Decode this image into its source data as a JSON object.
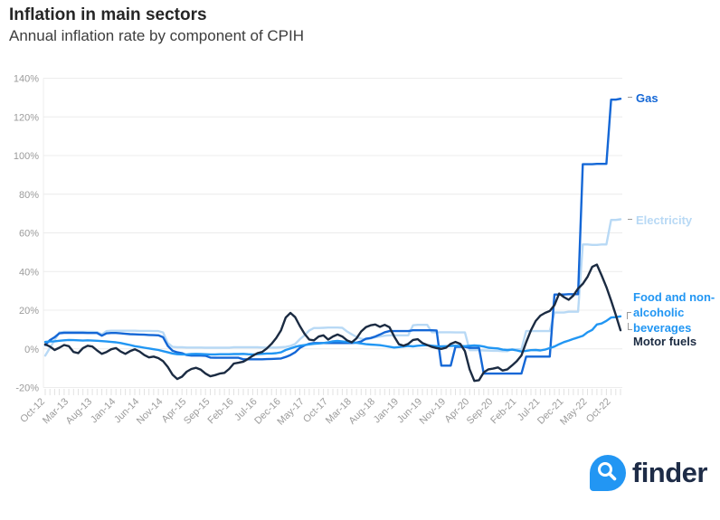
{
  "header": {
    "title": "Inflation in main sectors",
    "subtitle": "Annual inflation rate by component of CPIH"
  },
  "footer": {
    "brand": "finder",
    "logo_icon": "magnifier-drop-icon"
  },
  "chart_data": {
    "type": "line",
    "title": "Inflation in main sectors",
    "subtitle": "Annual inflation rate by component of CPIH",
    "x_start": "Oct-12",
    "x_end": "Dec-22",
    "x_interval_months": 1,
    "x_tick_every": 5,
    "x_tick_labels": [
      "Oct-12",
      "Mar-13",
      "Aug-13",
      "Jan-14",
      "Jun-14",
      "Nov-14",
      "Apr-15",
      "Sep-15",
      "Feb-16",
      "Jul-16",
      "Dec-16",
      "May-17",
      "Oct-17",
      "Mar-18",
      "Aug-18",
      "Jan-19",
      "Jun-19",
      "Nov-19",
      "Apr-20",
      "Sep-20",
      "Feb-21",
      "Jul-21",
      "Dec-21",
      "May-22",
      "Oct-22"
    ],
    "ylim": [
      -20,
      140
    ],
    "y_axis": {
      "ticks": [
        140,
        120,
        100,
        80,
        60,
        40,
        20,
        0,
        -20
      ],
      "unit": "%"
    },
    "grid": "horizontal",
    "legend_position": "right-of-line-end",
    "colors": {
      "grid": "#ececec",
      "axis_text": "#9b9b9b",
      "minor_tick": "#e2e2e2"
    },
    "draw_order": [
      1,
      0,
      2,
      3
    ],
    "series": [
      {
        "name": "Gas",
        "color": "#1467d6",
        "label_color": "#1467d6",
        "data_name": "gas-line",
        "values": [
          2.0,
          4.5,
          6.0,
          8.0,
          8.3,
          8.3,
          8.3,
          8.3,
          8.3,
          8.2,
          8.2,
          8.2,
          6.8,
          8.0,
          8.2,
          8.2,
          8.0,
          7.8,
          7.6,
          7.5,
          7.4,
          7.3,
          7.2,
          7.1,
          7.0,
          6.0,
          1.5,
          -1.0,
          -1.8,
          -2.2,
          -3.2,
          -3.5,
          -3.5,
          -3.5,
          -3.6,
          -4.5,
          -4.6,
          -4.6,
          -4.6,
          -4.6,
          -4.6,
          -4.6,
          -5.4,
          -5.4,
          -5.4,
          -5.4,
          -5.4,
          -5.3,
          -5.2,
          -5.1,
          -5.0,
          -4.2,
          -3.2,
          -1.8,
          0.5,
          1.8,
          2.6,
          3.0,
          3.0,
          3.0,
          3.0,
          3.0,
          3.0,
          3.0,
          3.0,
          3.0,
          3.2,
          3.8,
          5.2,
          5.6,
          6.4,
          7.4,
          8.6,
          9.2,
          9.2,
          9.2,
          9.2,
          9.2,
          9.6,
          9.6,
          9.6,
          9.6,
          9.6,
          9.5,
          -8.7,
          -8.7,
          -8.7,
          1.0,
          1.0,
          1.0,
          0.5,
          0.5,
          0.5,
          -12.8,
          -12.8,
          -12.8,
          -12.8,
          -12.8,
          -12.8,
          -12.8,
          -12.8,
          -12.8,
          -4.0,
          -4.0,
          -4.0,
          -4.0,
          -4.0,
          -4.0,
          28.1,
          28.1,
          28.1,
          28.3,
          28.3,
          28.3,
          95.5,
          95.5,
          95.5,
          95.7,
          95.7,
          95.7,
          128.9,
          128.9,
          129.4
        ]
      },
      {
        "name": "Electricity",
        "color": "#b8d9f5",
        "label_color": "#b8d9f5",
        "data_name": "electricity-line",
        "values": [
          -3.5,
          0.5,
          4.5,
          8.5,
          8.8,
          8.8,
          8.8,
          8.8,
          8.8,
          8.8,
          8.8,
          8.7,
          7.5,
          9.2,
          9.4,
          9.4,
          9.4,
          9.4,
          9.4,
          9.4,
          9.3,
          9.3,
          9.3,
          9.2,
          9.2,
          8.5,
          3.0,
          1.0,
          0.8,
          0.8,
          0.7,
          0.7,
          0.7,
          0.7,
          0.6,
          0.6,
          0.6,
          0.6,
          0.6,
          0.6,
          0.8,
          0.8,
          0.8,
          0.8,
          0.8,
          0.8,
          0.7,
          0.7,
          0.7,
          0.7,
          0.8,
          1.0,
          1.5,
          2.5,
          5.0,
          7.0,
          9.5,
          10.8,
          10.8,
          10.9,
          11.0,
          11.0,
          11.0,
          10.9,
          9.0,
          7.5,
          6.2,
          5.2,
          4.8,
          5.4,
          6.0,
          6.4,
          6.8,
          7.0,
          7.0,
          7.0,
          7.0,
          7.0,
          12.2,
          12.4,
          12.4,
          12.4,
          8.6,
          8.6,
          8.6,
          8.6,
          8.6,
          8.5,
          8.5,
          8.5,
          -0.7,
          -0.7,
          -0.7,
          -0.8,
          -0.9,
          -1.0,
          -1.0,
          -1.2,
          -1.2,
          -0.2,
          -0.2,
          -0.2,
          9.2,
          9.2,
          9.2,
          9.2,
          9.2,
          9.2,
          18.8,
          18.8,
          18.8,
          19.2,
          19.2,
          19.2,
          54.0,
          54.0,
          53.8,
          53.8,
          54.0,
          54.0,
          66.7,
          66.7,
          67.0
        ]
      },
      {
        "name": "Food and non-alcoholic beverages",
        "color": "#2196f3",
        "label_color": "#2196f3",
        "data_name": "food-line",
        "values": [
          3.6,
          3.8,
          3.9,
          4.2,
          4.4,
          4.6,
          4.5,
          4.4,
          4.3,
          4.4,
          4.3,
          4.2,
          4.0,
          3.8,
          3.6,
          3.4,
          3.0,
          2.5,
          2.0,
          1.4,
          1.0,
          0.6,
          0.2,
          -0.2,
          -0.6,
          -1.2,
          -1.8,
          -2.4,
          -2.8,
          -2.9,
          -2.9,
          -2.7,
          -2.6,
          -2.7,
          -2.8,
          -2.9,
          -2.9,
          -2.8,
          -2.8,
          -2.8,
          -2.7,
          -2.7,
          -2.6,
          -2.8,
          -2.9,
          -2.8,
          -2.6,
          -2.4,
          -2.4,
          -2.2,
          -1.8,
          -0.6,
          0.2,
          1.0,
          1.6,
          2.0,
          2.3,
          2.6,
          2.8,
          3.0,
          3.4,
          3.9,
          4.1,
          3.8,
          3.6,
          3.5,
          3.1,
          2.8,
          2.4,
          2.2,
          2.1,
          1.9,
          1.5,
          1.1,
          0.7,
          0.9,
          1.2,
          1.5,
          1.3,
          1.6,
          1.8,
          1.9,
          1.6,
          1.4,
          1.3,
          1.4,
          1.5,
          1.6,
          1.5,
          1.4,
          1.6,
          1.8,
          1.6,
          1.2,
          0.6,
          0.4,
          0.2,
          -0.4,
          -0.6,
          -0.4,
          -0.8,
          -1.4,
          -1.0,
          -0.7,
          -0.6,
          -0.8,
          -0.4,
          0.4,
          1.2,
          2.4,
          3.5,
          4.3,
          5.1,
          5.9,
          6.7,
          8.6,
          9.8,
          12.6,
          13.1,
          14.5,
          16.2,
          16.4,
          16.8
        ]
      },
      {
        "name": "Motor fuels",
        "color": "#1b2b42",
        "label_color": "#1b2b42",
        "data_name": "motor-fuels-line",
        "values": [
          2.3,
          1.2,
          -0.6,
          0.6,
          2.0,
          1.4,
          -1.6,
          -2.2,
          0.4,
          1.6,
          1.2,
          -0.8,
          -2.6,
          -1.6,
          -0.2,
          0.4,
          -1.4,
          -2.6,
          -1.2,
          -0.2,
          -1.4,
          -3.2,
          -4.4,
          -4.0,
          -4.8,
          -6.4,
          -9.4,
          -13.4,
          -15.6,
          -14.4,
          -11.8,
          -10.4,
          -9.8,
          -10.8,
          -12.8,
          -14.2,
          -13.6,
          -12.8,
          -12.4,
          -10.4,
          -7.6,
          -7.2,
          -6.6,
          -5.2,
          -3.6,
          -2.2,
          -1.6,
          0.2,
          2.6,
          5.6,
          9.6,
          16.2,
          18.6,
          16.4,
          11.8,
          7.8,
          4.8,
          4.4,
          6.4,
          7.0,
          4.8,
          6.4,
          7.4,
          6.4,
          4.4,
          3.4,
          5.4,
          9.0,
          11.2,
          12.2,
          12.6,
          11.4,
          12.4,
          11.2,
          6.4,
          2.4,
          1.6,
          2.6,
          4.6,
          5.0,
          3.0,
          2.0,
          1.0,
          0.4,
          0.0,
          0.6,
          2.6,
          3.6,
          2.6,
          -1.2,
          -10.6,
          -16.6,
          -16.2,
          -12.2,
          -10.6,
          -10.2,
          -9.6,
          -11.2,
          -10.6,
          -8.6,
          -6.4,
          -3.4,
          3.4,
          9.6,
          14.4,
          17.2,
          18.6,
          19.6,
          22.6,
          28.6,
          26.8,
          25.4,
          27.6,
          31.2,
          33.6,
          37.2,
          42.4,
          43.6,
          38.0,
          32.0,
          25.0,
          17.5,
          9.6
        ]
      }
    ]
  }
}
